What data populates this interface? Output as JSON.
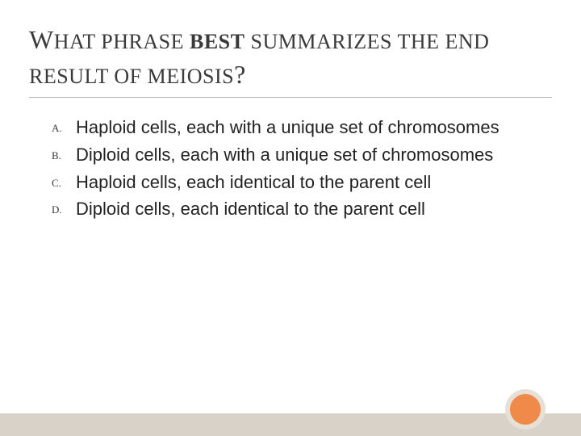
{
  "title": {
    "line1_cap": "W",
    "line1_rest1": "HAT PHRASE ",
    "line1_bold": "BEST",
    "line1_rest2": "  SUMMARIZES THE END",
    "line2": "RESULT OF MEIOSIS",
    "line2_q": "?"
  },
  "options": [
    {
      "marker": "A.",
      "text": "Haploid cells, each with a unique set of chromosomes"
    },
    {
      "marker": "B.",
      "text": "Diploid cells, each with a unique set of chromosomes"
    },
    {
      "marker": "C.",
      "text": "Haploid cells, each identical to the parent cell"
    },
    {
      "marker": "D.",
      "text": "Diploid cells, each identical to the parent cell"
    }
  ],
  "colors": {
    "bottom_bar": "#d8d2c8",
    "circle_fill": "#f08a4b",
    "circle_border": "#e6e0d6",
    "divider": "#b0b0b0",
    "title_text": "#3a3a3a",
    "body_text": "#222222"
  }
}
